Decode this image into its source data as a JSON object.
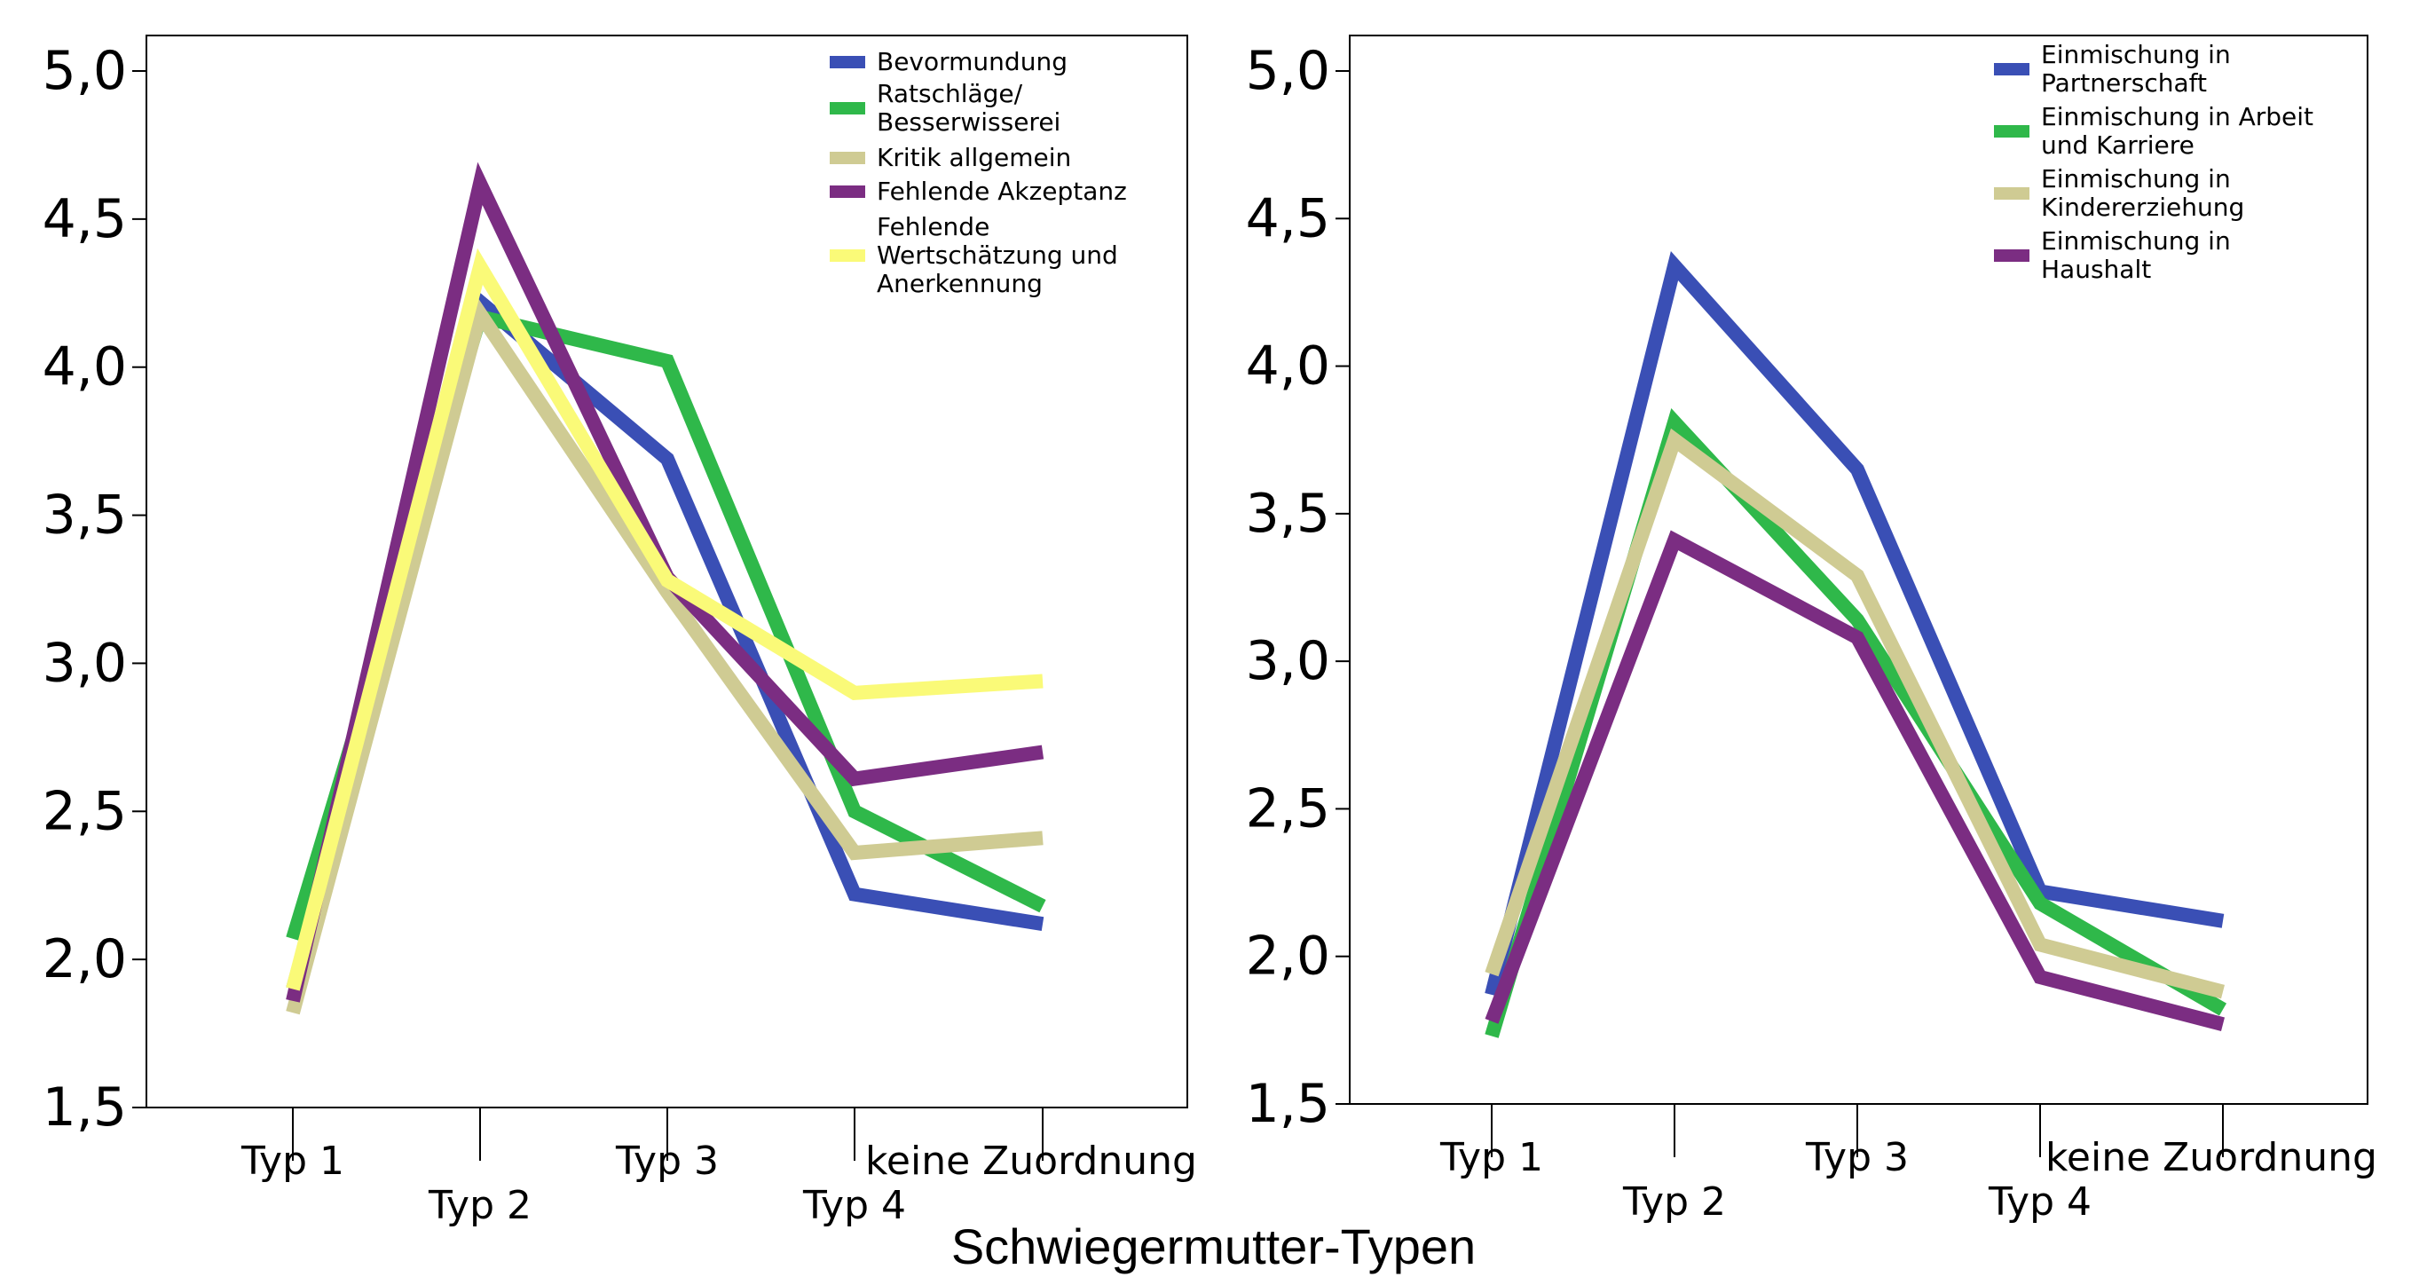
{
  "x_axis_title": "Schwiegermutter-Typen",
  "chart_data": [
    {
      "type": "line",
      "categories": [
        "Typ 1",
        "Typ 2",
        "Typ 3",
        "Typ 4",
        "keine Zuordnung"
      ],
      "ylim": [
        1.5,
        5.0
      ],
      "yticks": [
        "1,5",
        "2,0",
        "2,5",
        "3,0",
        "3,5",
        "4,0",
        "4,5",
        "5,0"
      ],
      "ytick_values": [
        1.5,
        2.0,
        2.5,
        3.0,
        3.5,
        4.0,
        4.5,
        5.0
      ],
      "legend_position": "top-right",
      "series": [
        {
          "name": "Bevormundung",
          "legend_lines": [
            "Bevormundung"
          ],
          "color": "#3a4fb5",
          "values": [
            1.9,
            4.22,
            3.69,
            2.22,
            2.12
          ]
        },
        {
          "name": "Ratschläge/ Besserwisserei",
          "legend_lines": [
            "Ratschläge/",
            "Besserwisserei"
          ],
          "color": "#2fb84a",
          "values": [
            2.07,
            4.17,
            4.02,
            2.5,
            2.18
          ]
        },
        {
          "name": "Kritik allgemein",
          "legend_lines": [
            "Kritik allgemein"
          ],
          "color": "#cfcb93",
          "values": [
            1.82,
            4.18,
            3.24,
            2.36,
            2.41
          ]
        },
        {
          "name": "Fehlende Akzeptanz",
          "legend_lines": [
            "Fehlende Akzeptanz"
          ],
          "color": "#7b2d82",
          "values": [
            1.86,
            4.62,
            3.29,
            2.61,
            2.7
          ]
        },
        {
          "name": "Fehlende Wertschätzung und Anerkennung",
          "legend_lines": [
            "Fehlende",
            "Wertschätzung und",
            "Anerkennung"
          ],
          "color": "#fafa78",
          "values": [
            1.9,
            4.34,
            3.28,
            2.9,
            2.94
          ]
        }
      ]
    },
    {
      "type": "line",
      "categories": [
        "Typ 1",
        "Typ 2",
        "Typ 3",
        "Typ 4",
        "keine Zuordnung"
      ],
      "ylim": [
        1.5,
        5.0
      ],
      "yticks": [
        "1,5",
        "2,0",
        "2,5",
        "3,0",
        "3,5",
        "4,0",
        "4,5",
        "5,0"
      ],
      "ytick_values": [
        1.5,
        2.0,
        2.5,
        3.0,
        3.5,
        4.0,
        4.5,
        5.0
      ],
      "legend_position": "top-right",
      "series": [
        {
          "name": "Einmischung in Partnerschaft",
          "legend_lines": [
            "Einmischung in",
            "Partnerschaft"
          ],
          "color": "#3a4fb5",
          "values": [
            1.87,
            4.34,
            3.65,
            2.22,
            2.12
          ]
        },
        {
          "name": "Einmischung in Arbeit und Karriere",
          "legend_lines": [
            "Einmischung in Arbeit",
            "und Karriere"
          ],
          "color": "#2fb84a",
          "values": [
            1.73,
            3.81,
            3.14,
            2.18,
            1.82
          ]
        },
        {
          "name": "Einmischung in Kindererziehung",
          "legend_lines": [
            "Einmischung in",
            "Kindererziehung"
          ],
          "color": "#cfcb93",
          "values": [
            1.94,
            3.75,
            3.29,
            2.04,
            1.88
          ]
        },
        {
          "name": "Einmischung in Haushalt",
          "legend_lines": [
            "Einmischung in",
            "Haushalt"
          ],
          "color": "#7b2d82",
          "values": [
            1.78,
            3.41,
            3.08,
            1.93,
            1.77
          ]
        }
      ]
    }
  ]
}
